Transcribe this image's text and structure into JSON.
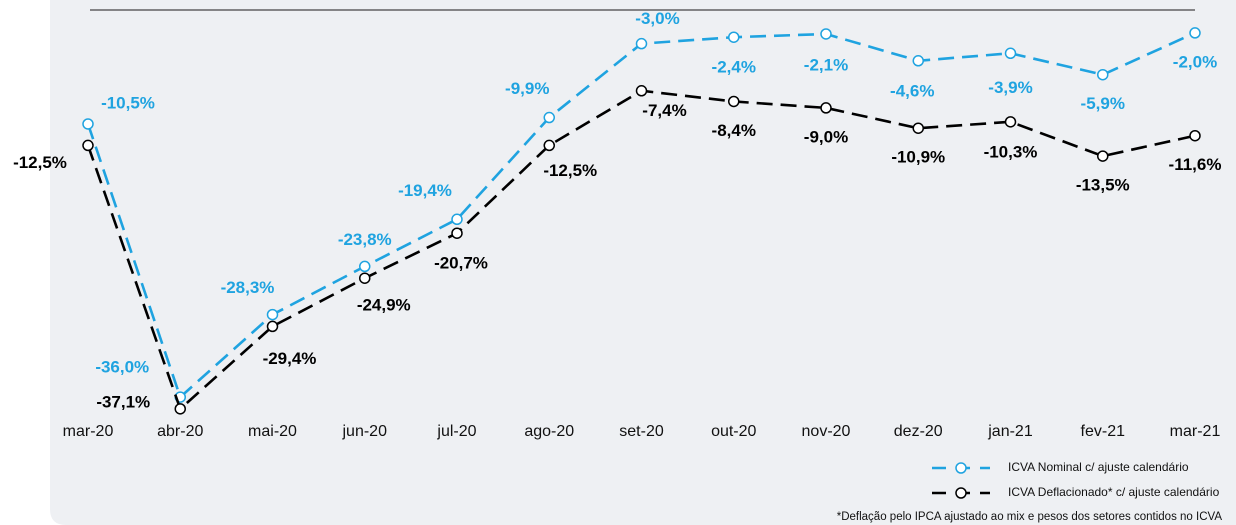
{
  "chart_data": {
    "type": "line",
    "categories": [
      "mar-20",
      "abr-20",
      "mai-20",
      "jun-20",
      "jul-20",
      "ago-20",
      "set-20",
      "out-20",
      "nov-20",
      "dez-20",
      "jan-21",
      "fev-21",
      "mar-21"
    ],
    "series": [
      {
        "name": "ICVA Nominal c/ ajuste calendário",
        "color": "#1fa3e0",
        "values": [
          -10.5,
          -36.0,
          -28.3,
          -23.8,
          -19.4,
          -9.9,
          -3.0,
          -2.4,
          -2.1,
          -4.6,
          -3.9,
          -5.9,
          -2.0
        ],
        "value_labels": [
          "-10,5%",
          "-36,0%",
          "-28,3%",
          "-23,8%",
          "-19,4%",
          "-9,9%",
          "-3,0%",
          "-2,4%",
          "-2,1%",
          "-4,6%",
          "-3,9%",
          "-5,9%",
          "-2,0%"
        ]
      },
      {
        "name": "ICVA Deflacionado* c/ ajuste calendário",
        "color": "#000000",
        "values": [
          -12.5,
          -37.1,
          -29.4,
          -24.9,
          -20.7,
          -12.5,
          -7.4,
          -8.4,
          -9.0,
          -10.9,
          -10.3,
          -13.5,
          -11.6
        ],
        "value_labels": [
          "-12,5%",
          "-37,1%",
          "-29,4%",
          "-24,9%",
          "-20,7%",
          "-12,5%",
          "-7,4%",
          "-8,4%",
          "-9,0%",
          "-10,9%",
          "-10,3%",
          "-13,5%",
          "-11,6%"
        ]
      }
    ],
    "ylim": [
      -38,
      0
    ],
    "note": "*Deflação pelo IPCA ajustado ao mix e pesos dos setores contidos no ICVA"
  }
}
